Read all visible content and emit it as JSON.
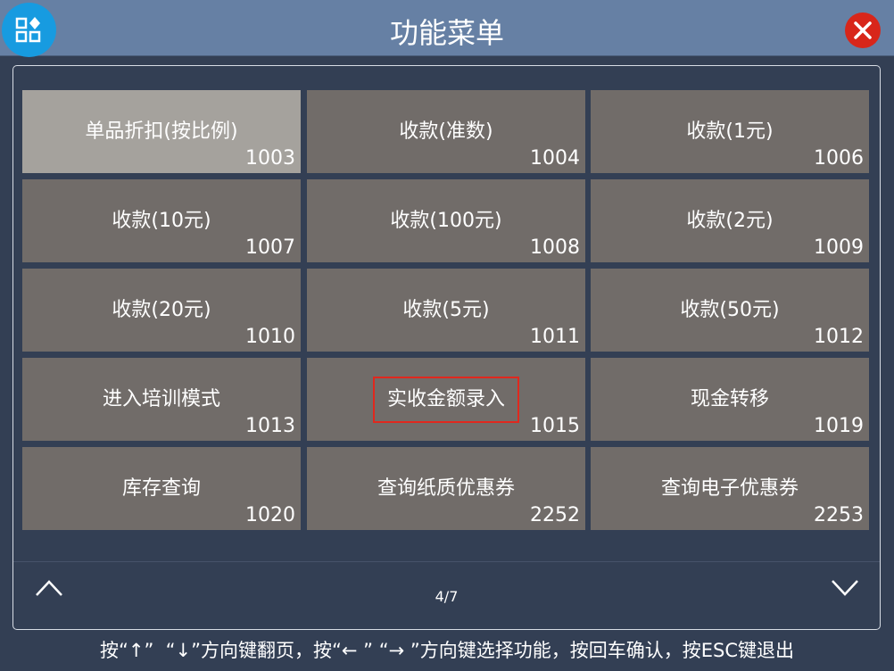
{
  "header": {
    "title": "功能菜单",
    "app_icon": "apps-icon",
    "close_icon": "close-icon"
  },
  "tiles": [
    {
      "label": "单品折扣(按比例)",
      "code": "1003",
      "selected": true
    },
    {
      "label": "收款(准数)",
      "code": "1004"
    },
    {
      "label": "收款(1元)",
      "code": "1006"
    },
    {
      "label": "收款(10元)",
      "code": "1007"
    },
    {
      "label": "收款(100元)",
      "code": "1008"
    },
    {
      "label": "收款(2元)",
      "code": "1009"
    },
    {
      "label": "收款(20元)",
      "code": "1010"
    },
    {
      "label": "收款(5元)",
      "code": "1011"
    },
    {
      "label": "收款(50元)",
      "code": "1012"
    },
    {
      "label": "进入培训模式",
      "code": "1013"
    },
    {
      "label": "实收金额录入",
      "code": "1015",
      "highlighted": true
    },
    {
      "label": "现金转移",
      "code": "1019"
    },
    {
      "label": "库存查询",
      "code": "1020"
    },
    {
      "label": "查询纸质优惠券",
      "code": "2252"
    },
    {
      "label": "查询电子优惠券",
      "code": "2253"
    }
  ],
  "pager": {
    "page": "4/7"
  },
  "footer": {
    "hint": "按“↑”  “↓”方向键翻页，按“← ” “→ ”方向键选择功能，按回车确认，按ESC键退出"
  },
  "colors": {
    "header": "#6680a4",
    "background": "#333f54",
    "tile": "#716c69",
    "tile_selected": "#a5a29d",
    "highlight_border": "#e0281e",
    "close": "#d8261a",
    "app_icon": "#179be0"
  }
}
